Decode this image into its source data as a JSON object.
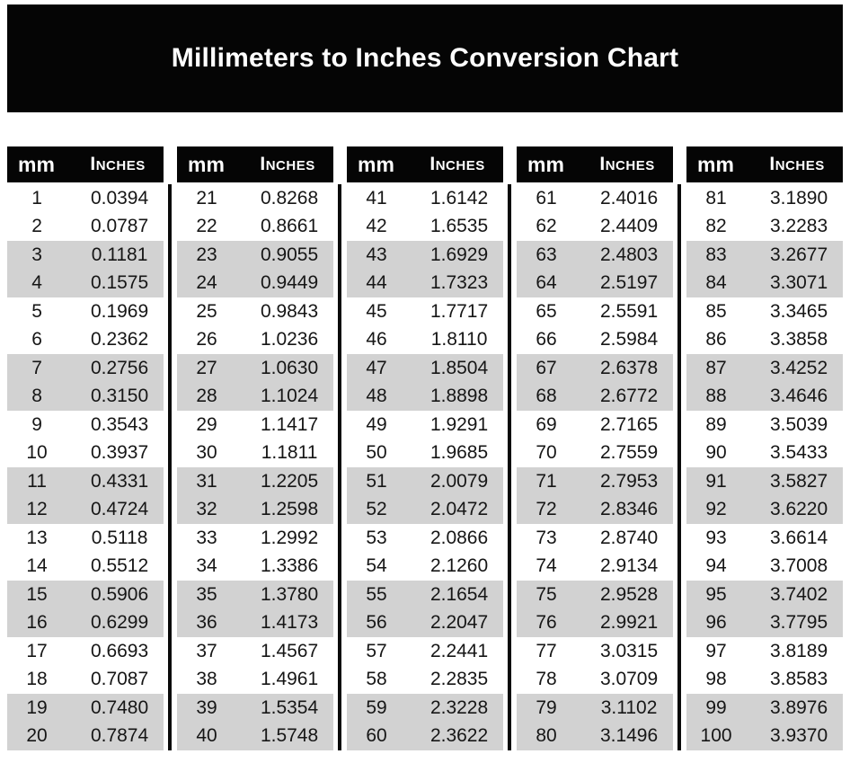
{
  "title": "Millimeters to Inches Conversion Chart",
  "colors": {
    "banner_bg": "#050505",
    "stripe_gray": "#d2d2d2",
    "body_text": "#161616",
    "header_text": "#ffffff"
  },
  "chart_data": {
    "type": "table",
    "title": "Millimeters to Inches Conversion Chart",
    "columns": [
      "mm",
      "Inches"
    ],
    "layout": {
      "column_groups": 5,
      "rows_per_group": 20,
      "striping": "two-row alternating gray bands"
    },
    "groups": [
      {
        "rows": [
          [
            1,
            "0.0394"
          ],
          [
            2,
            "0.0787"
          ],
          [
            3,
            "0.1181"
          ],
          [
            4,
            "0.1575"
          ],
          [
            5,
            "0.1969"
          ],
          [
            6,
            "0.2362"
          ],
          [
            7,
            "0.2756"
          ],
          [
            8,
            "0.3150"
          ],
          [
            9,
            "0.3543"
          ],
          [
            10,
            "0.3937"
          ],
          [
            11,
            "0.4331"
          ],
          [
            12,
            "0.4724"
          ],
          [
            13,
            "0.5118"
          ],
          [
            14,
            "0.5512"
          ],
          [
            15,
            "0.5906"
          ],
          [
            16,
            "0.6299"
          ],
          [
            17,
            "0.6693"
          ],
          [
            18,
            "0.7087"
          ],
          [
            19,
            "0.7480"
          ],
          [
            20,
            "0.7874"
          ]
        ]
      },
      {
        "rows": [
          [
            21,
            "0.8268"
          ],
          [
            22,
            "0.8661"
          ],
          [
            23,
            "0.9055"
          ],
          [
            24,
            "0.9449"
          ],
          [
            25,
            "0.9843"
          ],
          [
            26,
            "1.0236"
          ],
          [
            27,
            "1.0630"
          ],
          [
            28,
            "1.1024"
          ],
          [
            29,
            "1.1417"
          ],
          [
            30,
            "1.1811"
          ],
          [
            31,
            "1.2205"
          ],
          [
            32,
            "1.2598"
          ],
          [
            33,
            "1.2992"
          ],
          [
            34,
            "1.3386"
          ],
          [
            35,
            "1.3780"
          ],
          [
            36,
            "1.4173"
          ],
          [
            37,
            "1.4567"
          ],
          [
            38,
            "1.4961"
          ],
          [
            39,
            "1.5354"
          ],
          [
            40,
            "1.5748"
          ]
        ]
      },
      {
        "rows": [
          [
            41,
            "1.6142"
          ],
          [
            42,
            "1.6535"
          ],
          [
            43,
            "1.6929"
          ],
          [
            44,
            "1.7323"
          ],
          [
            45,
            "1.7717"
          ],
          [
            46,
            "1.8110"
          ],
          [
            47,
            "1.8504"
          ],
          [
            48,
            "1.8898"
          ],
          [
            49,
            "1.9291"
          ],
          [
            50,
            "1.9685"
          ],
          [
            51,
            "2.0079"
          ],
          [
            52,
            "2.0472"
          ],
          [
            53,
            "2.0866"
          ],
          [
            54,
            "2.1260"
          ],
          [
            55,
            "2.1654"
          ],
          [
            56,
            "2.2047"
          ],
          [
            57,
            "2.2441"
          ],
          [
            58,
            "2.2835"
          ],
          [
            59,
            "2.3228"
          ],
          [
            60,
            "2.3622"
          ]
        ]
      },
      {
        "rows": [
          [
            61,
            "2.4016"
          ],
          [
            62,
            "2.4409"
          ],
          [
            63,
            "2.4803"
          ],
          [
            64,
            "2.5197"
          ],
          [
            65,
            "2.5591"
          ],
          [
            66,
            "2.5984"
          ],
          [
            67,
            "2.6378"
          ],
          [
            68,
            "2.6772"
          ],
          [
            69,
            "2.7165"
          ],
          [
            70,
            "2.7559"
          ],
          [
            71,
            "2.7953"
          ],
          [
            72,
            "2.8346"
          ],
          [
            73,
            "2.8740"
          ],
          [
            74,
            "2.9134"
          ],
          [
            75,
            "2.9528"
          ],
          [
            76,
            "2.9921"
          ],
          [
            77,
            "3.0315"
          ],
          [
            78,
            "3.0709"
          ],
          [
            79,
            "3.1102"
          ],
          [
            80,
            "3.1496"
          ]
        ]
      },
      {
        "rows": [
          [
            81,
            "3.1890"
          ],
          [
            82,
            "3.2283"
          ],
          [
            83,
            "3.2677"
          ],
          [
            84,
            "3.3071"
          ],
          [
            85,
            "3.3465"
          ],
          [
            86,
            "3.3858"
          ],
          [
            87,
            "3.4252"
          ],
          [
            88,
            "3.4646"
          ],
          [
            89,
            "3.5039"
          ],
          [
            90,
            "3.5433"
          ],
          [
            91,
            "3.5827"
          ],
          [
            92,
            "3.6220"
          ],
          [
            93,
            "3.6614"
          ],
          [
            94,
            "3.7008"
          ],
          [
            95,
            "3.7402"
          ],
          [
            96,
            "3.7795"
          ],
          [
            97,
            "3.8189"
          ],
          [
            98,
            "3.8583"
          ],
          [
            99,
            "3.8976"
          ],
          [
            100,
            "3.9370"
          ]
        ]
      }
    ]
  }
}
